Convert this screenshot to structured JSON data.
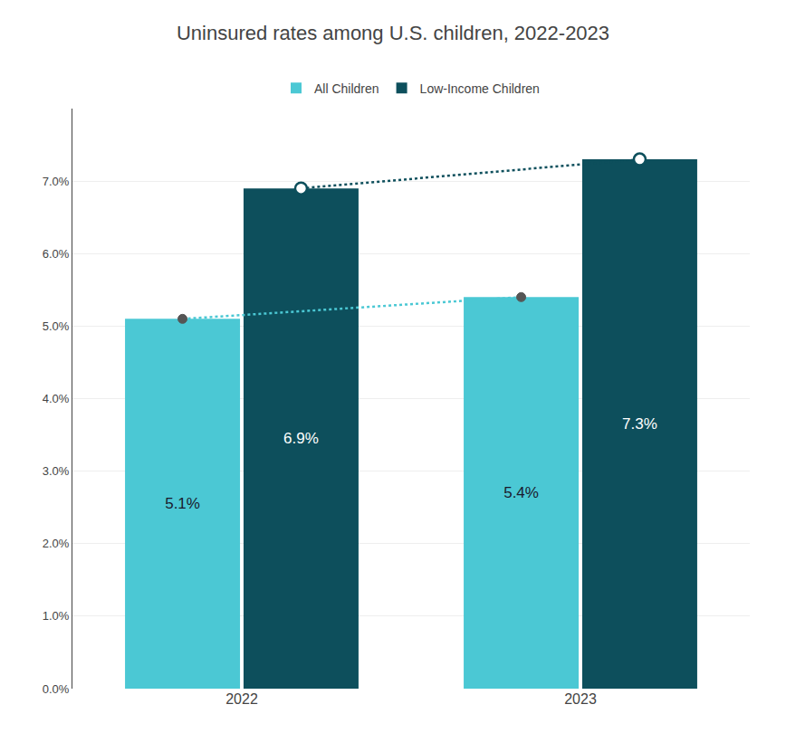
{
  "chart_data": {
    "type": "bar",
    "title": "Uninsured rates among U.S. children, 2022-2023",
    "categories": [
      "2022",
      "2023"
    ],
    "series": [
      {
        "name": "All Children",
        "color": "#4BC8D4",
        "values": [
          5.1,
          5.4
        ],
        "value_labels": [
          "5.1%",
          "5.4%"
        ],
        "line_style": "dotted",
        "marker": "circle"
      },
      {
        "name": "Low-Income Children",
        "color": "#0D4F5C",
        "values": [
          6.9,
          7.3
        ],
        "value_labels": [
          "6.9%",
          "7.3%"
        ],
        "line_style": "dotted",
        "marker": "circle-open"
      }
    ],
    "ylim": [
      0,
      8.0
    ],
    "yticks": [
      {
        "value": 0.0,
        "label": "0.0%"
      },
      {
        "value": 1.0,
        "label": "1.0%"
      },
      {
        "value": 2.0,
        "label": "2.0%"
      },
      {
        "value": 3.0,
        "label": "3.0%"
      },
      {
        "value": 4.0,
        "label": "4.0%"
      },
      {
        "value": 5.0,
        "label": "5.0%"
      },
      {
        "value": 6.0,
        "label": "6.0%"
      },
      {
        "value": 7.0,
        "label": "7.0%"
      }
    ],
    "grid": true,
    "legend": "top",
    "data_labels": true
  }
}
